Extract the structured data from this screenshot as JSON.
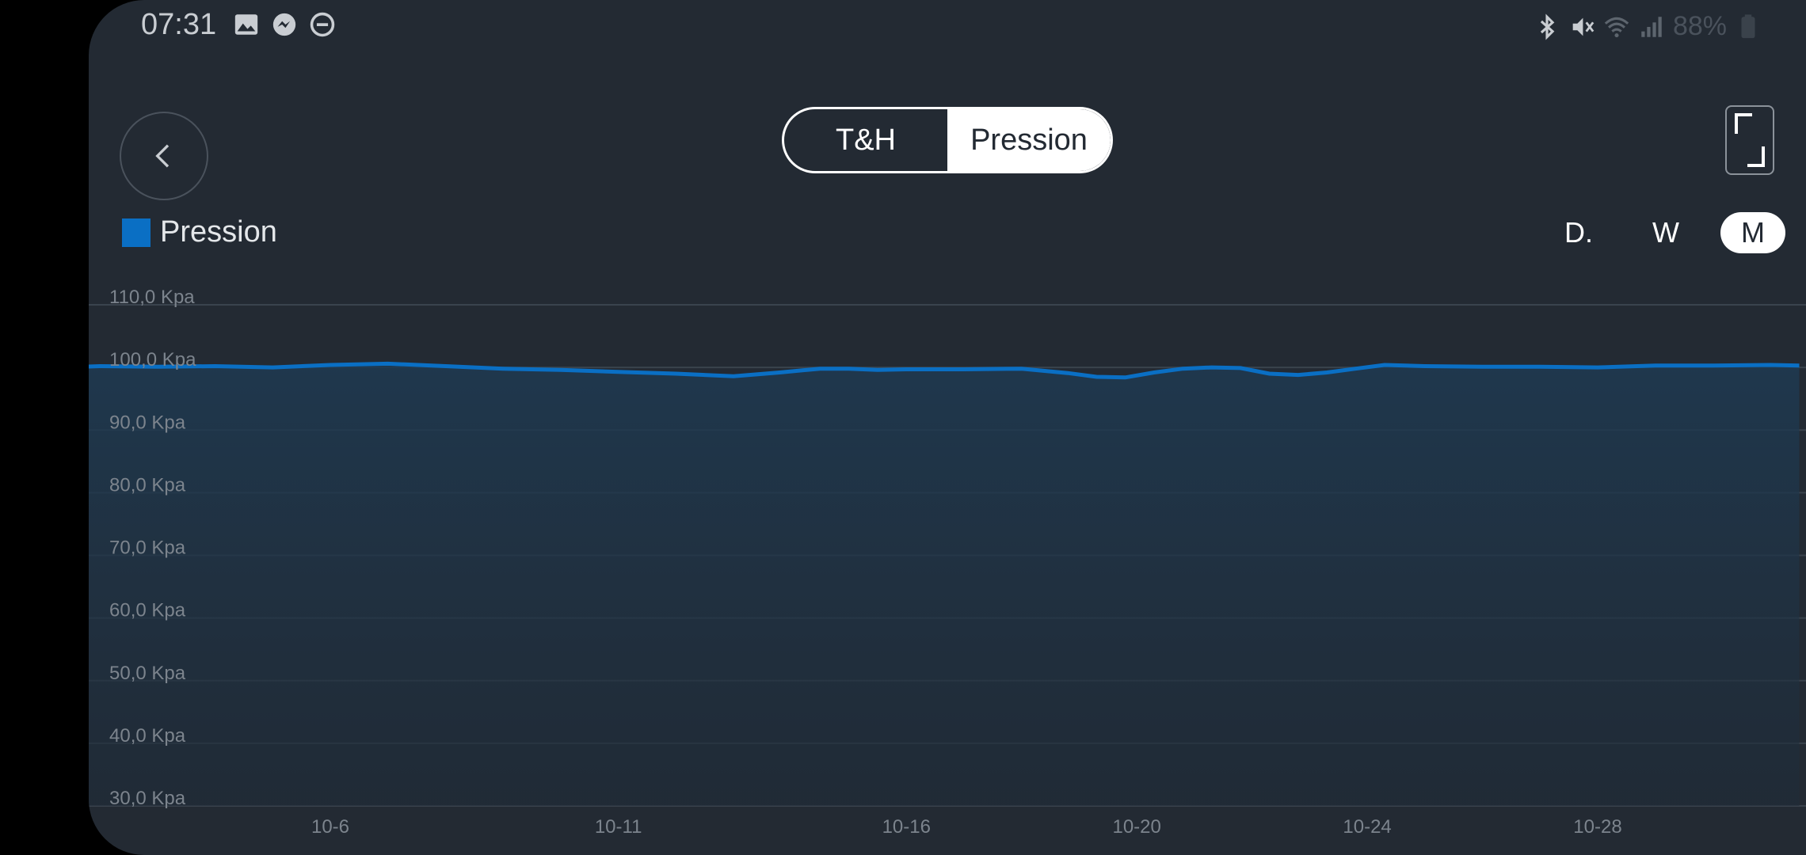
{
  "status_bar": {
    "time": "07:31",
    "left_icons": [
      "image-icon",
      "messenger-icon",
      "dnd-icon"
    ],
    "right_icons": [
      "bluetooth-icon",
      "mute-icon",
      "wifi-icon",
      "signal-icon"
    ],
    "battery": "88%"
  },
  "header": {
    "tabs": [
      {
        "label": "T&H",
        "active": false
      },
      {
        "label": "Pression",
        "active": true
      }
    ]
  },
  "legend": {
    "label": "Pression",
    "color": "#0a6fc4"
  },
  "period": [
    {
      "label": "D.",
      "active": false
    },
    {
      "label": "W",
      "active": false
    },
    {
      "label": "M",
      "active": true
    }
  ],
  "chart_data": {
    "type": "area",
    "title": "",
    "xlabel": "",
    "ylabel": "",
    "ylim": [
      30,
      110
    ],
    "y_ticks": [
      "110,0 Kpa",
      "100,0 Kpa",
      "90,0 Kpa",
      "80,0 Kpa",
      "70,0 Kpa",
      "60,0 Kpa",
      "50,0 Kpa",
      "40,0 Kpa",
      "30,0 Kpa"
    ],
    "x_ticks": [
      "10-6",
      "10-11",
      "10-16",
      "10-20",
      "10-24",
      "10-28"
    ],
    "x_tick_days": [
      6,
      11,
      16,
      20,
      24,
      28
    ],
    "grid": true,
    "line_color": "#0a6fc4",
    "series": [
      {
        "name": "Pression",
        "x": [
          1.3,
          2,
          3,
          4,
          5,
          6,
          7,
          8,
          9,
          10,
          11,
          12,
          13,
          13.8,
          14.5,
          15,
          15.5,
          16,
          17,
          18,
          18.8,
          19.3,
          19.8,
          20.3,
          20.8,
          21.3,
          21.8,
          22.3,
          22.8,
          23.3,
          23.8,
          24.3,
          25,
          26,
          27,
          28,
          29,
          30,
          31,
          31.5
        ],
        "values": [
          100.0,
          100.2,
          100.1,
          100.2,
          100.0,
          100.4,
          100.6,
          100.2,
          99.8,
          99.6,
          99.3,
          99.0,
          98.6,
          99.2,
          99.8,
          99.8,
          99.6,
          99.7,
          99.7,
          99.8,
          99.1,
          98.5,
          98.4,
          99.2,
          99.8,
          100.0,
          99.9,
          99.0,
          98.8,
          99.2,
          99.8,
          100.4,
          100.2,
          100.1,
          100.1,
          100.0,
          100.3,
          100.3,
          100.4,
          100.3
        ]
      }
    ]
  }
}
